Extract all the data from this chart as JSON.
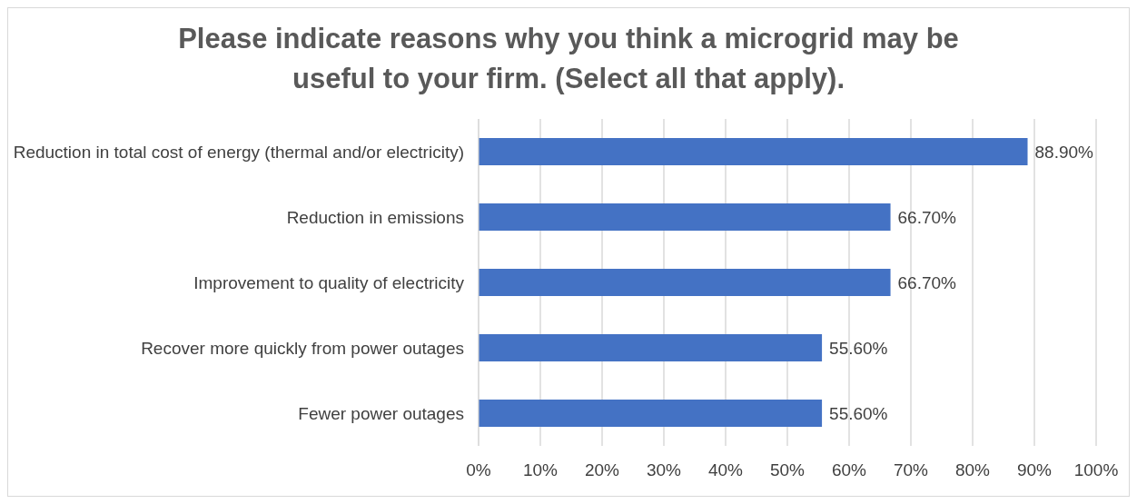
{
  "chart_data": {
    "type": "bar",
    "orientation": "horizontal",
    "title": "Please indicate reasons why you think a microgrid may be useful to your firm. (Select all that apply).",
    "categories": [
      "Reduction in total cost of energy (thermal and/or electricity)",
      "Reduction in emissions",
      "Improvement to quality of electricity",
      "Recover more quickly from power outages",
      "Fewer power outages"
    ],
    "values": [
      88.9,
      66.7,
      66.7,
      55.6,
      55.6
    ],
    "value_labels": [
      "88.90%",
      "66.70%",
      "66.70%",
      "55.60%",
      "55.60%"
    ],
    "color": "#4472c4",
    "xlim": [
      0,
      100
    ],
    "xticks": [
      {
        "value": 0,
        "label": "0%"
      },
      {
        "value": 10,
        "label": "10%"
      },
      {
        "value": 20,
        "label": "20%"
      },
      {
        "value": 30,
        "label": "30%"
      },
      {
        "value": 40,
        "label": "40%"
      },
      {
        "value": 50,
        "label": "50%"
      },
      {
        "value": 60,
        "label": "60%"
      },
      {
        "value": 70,
        "label": "70%"
      },
      {
        "value": 80,
        "label": "80%"
      },
      {
        "value": 90,
        "label": "90%"
      },
      {
        "value": 100,
        "label": "100%"
      }
    ],
    "grid": "x",
    "legend": false
  }
}
